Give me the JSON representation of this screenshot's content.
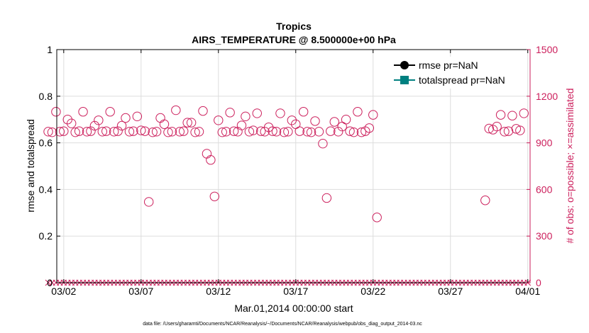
{
  "chart_data": {
    "type": "scatter",
    "title": "Tropics",
    "subtitle": "AIRS_TEMPERATURE @ 8.500000e+00 hPa",
    "xlabel": "Mar.01,2014 00:00:00 start",
    "ylabel_left": "rmse and totalspread",
    "ylabel_right": "# of obs: o=possible; ×=assimilated",
    "ylim_left": [
      0,
      1
    ],
    "ylim_right": [
      0,
      1500
    ],
    "xlim": [
      0.55,
      31.15
    ],
    "yticks_left": [
      0,
      0.2,
      0.4,
      0.6,
      0.8,
      1
    ],
    "yticks_left_labels": [
      "0",
      "0.2",
      "0.4",
      "0.6",
      "0.8",
      "1"
    ],
    "yticks_right": [
      0,
      300,
      600,
      900,
      1200,
      1500
    ],
    "yticks_right_labels": [
      "0",
      "300",
      "600",
      "900",
      "1200",
      "1500"
    ],
    "xticks": [
      1,
      6,
      11,
      16,
      21,
      26,
      31
    ],
    "xtick_labels": [
      "03/02",
      "03/07",
      "03/12",
      "03/17",
      "03/22",
      "03/27",
      "04/01"
    ],
    "grid": true,
    "legend": {
      "placement": "top-right",
      "entries": [
        "rmse pr=NaN",
        "totalspread pr=NaN"
      ],
      "colors": [
        "#000000",
        "#008080"
      ]
    },
    "footnote": "data file: /Users/gharamti/Documents/NCAR/Reanalysis/~/Documents/NCAR/Reanalysis/webpub/obs_diag_output_2014-03.nc",
    "colors": {
      "possible": "#cc1f5c",
      "assimilated": "#cc1f5c",
      "rmse": "#000000",
      "totalspread": "#008080"
    },
    "series": [
      {
        "name": "possible",
        "marker": "circle",
        "x": [
          0.0,
          0.25,
          0.5,
          0.75,
          1.0,
          1.25,
          1.5,
          1.75,
          2.0,
          2.25,
          2.5,
          2.75,
          3.0,
          3.25,
          3.5,
          3.75,
          4.0,
          4.25,
          4.5,
          4.75,
          5.0,
          5.25,
          5.5,
          5.75,
          6.0,
          6.25,
          6.5,
          6.75,
          7.0,
          7.25,
          7.5,
          7.75,
          8.0,
          8.25,
          8.5,
          8.75,
          9.0,
          9.25,
          9.5,
          9.75,
          10.0,
          10.25,
          10.5,
          10.75,
          11.0,
          11.25,
          11.5,
          11.75,
          12.0,
          12.25,
          12.5,
          12.75,
          13.0,
          13.25,
          13.5,
          13.75,
          14.0,
          14.25,
          14.5,
          14.75,
          15.0,
          15.25,
          15.5,
          15.75,
          16.0,
          16.25,
          16.5,
          16.75,
          17.0,
          17.25,
          17.5,
          17.75,
          18.0,
          18.25,
          18.5,
          18.75,
          19.0,
          19.25,
          19.5,
          19.75,
          20.0,
          20.25,
          20.5,
          20.75,
          21.0,
          21.25,
          28.25,
          28.5,
          28.75,
          29.0,
          29.25,
          29.5,
          29.75,
          30.0,
          30.25,
          30.5,
          30.75
        ],
        "values": [
          972,
          968,
          1100,
          972,
          975,
          1050,
          1025,
          968,
          975,
          1100,
          972,
          975,
          1010,
          1045,
          972,
          975,
          1100,
          972,
          975,
          1010,
          1060,
          972,
          975,
          1070,
          980,
          975,
          520,
          968,
          972,
          1060,
          1020,
          968,
          972,
          1110,
          972,
          975,
          1030,
          1030,
          968,
          972,
          1105,
          830,
          790,
          555,
          1045,
          968,
          972,
          1095,
          975,
          972,
          1012,
          1070,
          972,
          980,
          1090,
          975,
          972,
          1000,
          975,
          972,
          1090,
          968,
          972,
          1045,
          1020,
          975,
          1100,
          972,
          968,
          1040,
          972,
          895,
          545,
          975,
          1035,
          972,
          1005,
          1050,
          975,
          968,
          1100,
          968,
          975,
          995,
          1080,
          420,
          530,
          992,
          985,
          1005,
          1080,
          972,
          975,
          1075,
          990,
          980,
          1090
        ]
      },
      {
        "name": "assimilated",
        "marker": "x",
        "x_range": [
          0,
          31
        ],
        "x_step": 0.25,
        "value": 0
      }
    ]
  }
}
